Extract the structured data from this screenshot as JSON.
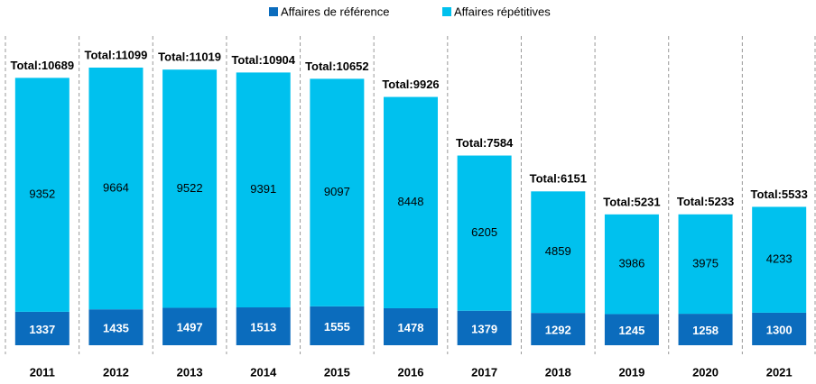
{
  "chart_data": {
    "type": "stacked_bar",
    "categories": [
      "2011",
      "2012",
      "2013",
      "2014",
      "2015",
      "2016",
      "2017",
      "2018",
      "2019",
      "2020",
      "2021"
    ],
    "series": [
      {
        "name": "Affaires de référence",
        "color": "#0b6cbd",
        "values": [
          1337,
          1435,
          1497,
          1513,
          1555,
          1478,
          1379,
          1292,
          1245,
          1258,
          1300
        ]
      },
      {
        "name": "Affaires répétitives",
        "color": "#00c1ee",
        "values": [
          9352,
          9664,
          9522,
          9391,
          9097,
          8448,
          6205,
          4859,
          3986,
          3975,
          4233
        ]
      }
    ],
    "total_labels": [
      "Total:10689",
      "Total:11099",
      "Total:11019",
      "Total:10904",
      "Total:10652",
      "Total:9926",
      "Total:7584",
      "Total:6151",
      "Total:5231",
      "Total:5233",
      "Total:5533"
    ],
    "ylim": [
      0,
      12000
    ],
    "legend": "top"
  }
}
